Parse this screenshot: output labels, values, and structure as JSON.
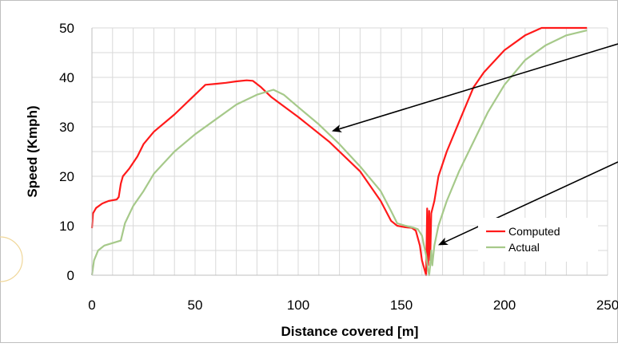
{
  "chart_data": {
    "type": "line",
    "xlabel": "Distance covered [m]",
    "ylabel": "Speed (Kmph)",
    "xlim": [
      0,
      250
    ],
    "ylim": [
      0,
      50
    ],
    "x_ticks": [
      "0",
      "50",
      "100",
      "150",
      "200",
      "250"
    ],
    "y_ticks": [
      "0",
      "10",
      "20",
      "30",
      "40",
      "50"
    ],
    "grid": true,
    "legend_position": "inside-bottom-right",
    "series": [
      {
        "name": "Computed",
        "color": "#ff1a1a",
        "points": [
          [
            0,
            9.5
          ],
          [
            0.5,
            12.5
          ],
          [
            2,
            13.6
          ],
          [
            5,
            14.5
          ],
          [
            8,
            15
          ],
          [
            12,
            15.3
          ],
          [
            13,
            15.8
          ],
          [
            14,
            18.5
          ],
          [
            15,
            20
          ],
          [
            18,
            21.5
          ],
          [
            22,
            24
          ],
          [
            25,
            26.5
          ],
          [
            30,
            29
          ],
          [
            40,
            32.5
          ],
          [
            50,
            36.5
          ],
          [
            55,
            38.5
          ],
          [
            60,
            38.7
          ],
          [
            65,
            38.9
          ],
          [
            70,
            39.2
          ],
          [
            75,
            39.4
          ],
          [
            78,
            39.3
          ],
          [
            82,
            38
          ],
          [
            87,
            36
          ],
          [
            100,
            32
          ],
          [
            115,
            27
          ],
          [
            130,
            21
          ],
          [
            140,
            15
          ],
          [
            145,
            11
          ],
          [
            148,
            10
          ],
          [
            152,
            9.7
          ],
          [
            155,
            9.6
          ],
          [
            157,
            9
          ],
          [
            159,
            6
          ],
          [
            160,
            3
          ],
          [
            161,
            1.5
          ],
          [
            162,
            0
          ],
          [
            162.5,
            13.5
          ],
          [
            163,
            2
          ],
          [
            163.5,
            13
          ],
          [
            164,
            3
          ],
          [
            164.5,
            12.5
          ],
          [
            166,
            15
          ],
          [
            168,
            20
          ],
          [
            172,
            25
          ],
          [
            178,
            31
          ],
          [
            185,
            38
          ],
          [
            190,
            41
          ],
          [
            200,
            45.5
          ],
          [
            210,
            48.5
          ],
          [
            218,
            50
          ],
          [
            240,
            50
          ]
        ]
      },
      {
        "name": "Actual",
        "color": "#a6c98a",
        "points": [
          [
            0,
            0
          ],
          [
            1,
            3
          ],
          [
            3,
            5
          ],
          [
            6,
            6
          ],
          [
            10,
            6.5
          ],
          [
            14,
            7
          ],
          [
            16,
            10.5
          ],
          [
            20,
            14
          ],
          [
            25,
            17
          ],
          [
            30,
            20.5
          ],
          [
            40,
            25
          ],
          [
            50,
            28.5
          ],
          [
            60,
            31.5
          ],
          [
            70,
            34.5
          ],
          [
            80,
            36.5
          ],
          [
            88,
            37.5
          ],
          [
            93,
            36.5
          ],
          [
            100,
            34
          ],
          [
            110,
            30.5
          ],
          [
            120,
            26.5
          ],
          [
            130,
            22
          ],
          [
            140,
            17
          ],
          [
            145,
            13
          ],
          [
            148,
            10.5
          ],
          [
            152,
            10
          ],
          [
            156,
            9.6
          ],
          [
            158,
            9.3
          ],
          [
            160,
            8
          ],
          [
            162,
            4
          ],
          [
            163,
            1
          ],
          [
            163.5,
            0
          ],
          [
            164,
            2
          ],
          [
            164.5,
            5
          ],
          [
            165,
            2
          ],
          [
            166,
            6
          ],
          [
            168,
            10
          ],
          [
            172,
            15
          ],
          [
            178,
            21
          ],
          [
            185,
            27
          ],
          [
            192,
            33
          ],
          [
            200,
            38.5
          ],
          [
            210,
            43.5
          ],
          [
            220,
            46.5
          ],
          [
            230,
            48.5
          ],
          [
            240,
            49.5
          ]
        ]
      }
    ]
  }
}
